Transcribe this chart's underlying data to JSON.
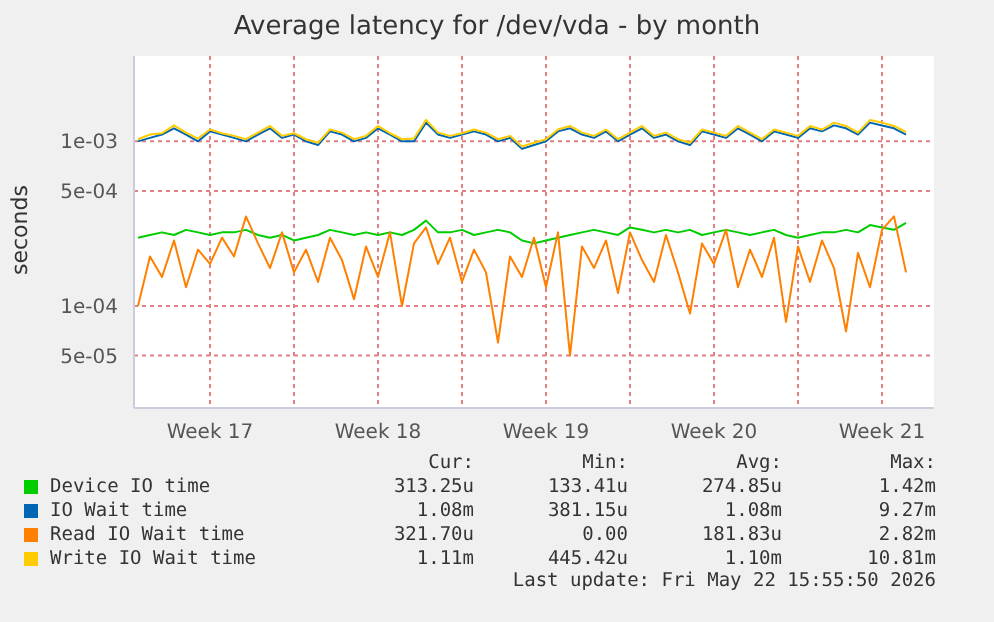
{
  "chart_data": {
    "type": "line",
    "title": "Average latency for /dev/vda - by month",
    "ylabel": "seconds",
    "log": true,
    "grid": true,
    "legend": "bottom",
    "xlim": [
      "2026-04-20T08:00",
      "2026-05-23T16:00"
    ],
    "xticks": [
      {
        "value": "2026-04-23T12:00",
        "label": "Week 17"
      },
      {
        "value": "2026-04-27",
        "label": null
      },
      {
        "value": "2026-04-30T12:00",
        "label": "Week 18"
      },
      {
        "value": "2026-05-04",
        "label": null
      },
      {
        "value": "2026-05-07T12:00",
        "label": "Week 19"
      },
      {
        "value": "2026-05-11",
        "label": null
      },
      {
        "value": "2026-05-14T12:00",
        "label": "Week 20"
      },
      {
        "value": "2026-05-18",
        "label": null
      },
      {
        "value": "2026-05-21T12:00",
        "label": "Week 21"
      }
    ],
    "ylim": [
      2.4e-05,
      0.0033
    ],
    "yticks": [
      {
        "value": 5e-05,
        "label": "5e-05"
      },
      {
        "value": 0.0001,
        "label": "1e-04"
      },
      {
        "value": 0.0005,
        "label": "5e-04"
      },
      {
        "value": 0.001,
        "label": "1e-03"
      }
    ],
    "x": [
      "2026-04-20T12:00",
      "2026-04-21T00:00",
      "2026-04-21T12:00",
      "2026-04-22T00:00",
      "2026-04-22T12:00",
      "2026-04-23T00:00",
      "2026-04-23T12:00",
      "2026-04-24T00:00",
      "2026-04-24T12:00",
      "2026-04-25T00:00",
      "2026-04-25T12:00",
      "2026-04-26T00:00",
      "2026-04-26T12:00",
      "2026-04-27T00:00",
      "2026-04-27T12:00",
      "2026-04-28T00:00",
      "2026-04-28T12:00",
      "2026-04-29T00:00",
      "2026-04-29T12:00",
      "2026-04-30T00:00",
      "2026-04-30T12:00",
      "2026-05-01T00:00",
      "2026-05-01T12:00",
      "2026-05-02T00:00",
      "2026-05-02T12:00",
      "2026-05-03T00:00",
      "2026-05-03T12:00",
      "2026-05-04T00:00",
      "2026-05-04T12:00",
      "2026-05-05T00:00",
      "2026-05-05T12:00",
      "2026-05-06T00:00",
      "2026-05-06T12:00",
      "2026-05-07T00:00",
      "2026-05-07T12:00",
      "2026-05-08T00:00",
      "2026-05-08T12:00",
      "2026-05-09T00:00",
      "2026-05-09T12:00",
      "2026-05-10T00:00",
      "2026-05-10T12:00",
      "2026-05-11T00:00",
      "2026-05-11T12:00",
      "2026-05-12T00:00",
      "2026-05-12T12:00",
      "2026-05-13T00:00",
      "2026-05-13T12:00",
      "2026-05-14T00:00",
      "2026-05-14T12:00",
      "2026-05-15T00:00",
      "2026-05-15T12:00",
      "2026-05-16T00:00",
      "2026-05-16T12:00",
      "2026-05-17T00:00",
      "2026-05-17T12:00",
      "2026-05-18T00:00",
      "2026-05-18T12:00",
      "2026-05-19T00:00",
      "2026-05-19T12:00",
      "2026-05-20T00:00",
      "2026-05-20T12:00",
      "2026-05-21T00:00",
      "2026-05-21T12:00",
      "2026-05-22T00:00",
      "2026-05-22T12:00"
    ],
    "series": [
      {
        "name": "Device IO time",
        "color": "#00cc00",
        "values": [
          0.00026,
          0.00027,
          0.00028,
          0.00027,
          0.00029,
          0.00028,
          0.00027,
          0.00028,
          0.00028,
          0.00029,
          0.00027,
          0.00026,
          0.00027,
          0.00025,
          0.00026,
          0.00027,
          0.00029,
          0.00028,
          0.00027,
          0.00028,
          0.00027,
          0.00028,
          0.00027,
          0.00029,
          0.00033,
          0.00028,
          0.00028,
          0.00029,
          0.00027,
          0.00028,
          0.00029,
          0.00028,
          0.00025,
          0.00024,
          0.00025,
          0.00026,
          0.00027,
          0.00028,
          0.00029,
          0.00028,
          0.00027,
          0.0003,
          0.00029,
          0.00028,
          0.00029,
          0.00028,
          0.00029,
          0.00027,
          0.00028,
          0.00029,
          0.00028,
          0.00027,
          0.00028,
          0.00029,
          0.00027,
          0.00026,
          0.00027,
          0.00028,
          0.00028,
          0.00029,
          0.00028,
          0.00031,
          0.0003,
          0.00029,
          0.00032
        ]
      },
      {
        "name": "IO Wait time",
        "color": "#0066b3",
        "values": [
          0.001,
          0.00105,
          0.0011,
          0.0012,
          0.0011,
          0.001,
          0.00115,
          0.0011,
          0.00105,
          0.001,
          0.0011,
          0.0012,
          0.00105,
          0.0011,
          0.001,
          0.00095,
          0.00115,
          0.0011,
          0.001,
          0.00105,
          0.0012,
          0.0011,
          0.001,
          0.001,
          0.0013,
          0.0011,
          0.00105,
          0.0011,
          0.00115,
          0.0011,
          0.001,
          0.00105,
          0.0009,
          0.00095,
          0.001,
          0.00115,
          0.0012,
          0.0011,
          0.00105,
          0.00115,
          0.001,
          0.0011,
          0.0012,
          0.00105,
          0.0011,
          0.001,
          0.00095,
          0.00115,
          0.0011,
          0.00105,
          0.0012,
          0.0011,
          0.001,
          0.00115,
          0.0011,
          0.00105,
          0.0012,
          0.00115,
          0.00125,
          0.0012,
          0.0011,
          0.0013,
          0.00125,
          0.0012,
          0.0011
        ]
      },
      {
        "name": "Read IO Wait time",
        "color": "#ff8000",
        "values": [
          0.0001,
          0.0002,
          0.00015,
          0.00025,
          0.00013,
          0.00022,
          0.00018,
          0.00026,
          0.0002,
          0.00035,
          0.00024,
          0.00017,
          0.00028,
          0.00016,
          0.00022,
          0.00014,
          0.00026,
          0.00019,
          0.00011,
          0.00023,
          0.00015,
          0.00028,
          0.0001,
          0.00024,
          0.0003,
          0.00018,
          0.00026,
          0.00014,
          0.00022,
          0.00016,
          6e-05,
          0.0002,
          0.00015,
          0.00026,
          0.00013,
          0.00028,
          5e-05,
          0.00023,
          0.00017,
          0.00025,
          0.00012,
          0.00028,
          0.00019,
          0.00014,
          0.00027,
          0.00016,
          9e-05,
          0.00024,
          0.00018,
          0.00029,
          0.00013,
          0.00022,
          0.00015,
          0.00026,
          8e-05,
          0.00023,
          0.00014,
          0.00025,
          0.00017,
          7e-05,
          0.00021,
          0.00013,
          0.00029,
          0.00035,
          0.00016
        ]
      },
      {
        "name": "Write IO Wait time",
        "color": "#ffcc00",
        "values": [
          0.00103,
          0.0011,
          0.00112,
          0.00125,
          0.00113,
          0.00104,
          0.00118,
          0.00112,
          0.00108,
          0.00103,
          0.00113,
          0.00124,
          0.00108,
          0.00112,
          0.00103,
          0.00098,
          0.00118,
          0.00113,
          0.00103,
          0.00108,
          0.00124,
          0.00112,
          0.00103,
          0.00104,
          0.00135,
          0.00113,
          0.00108,
          0.00112,
          0.00118,
          0.00113,
          0.00103,
          0.00108,
          0.00093,
          0.00098,
          0.00103,
          0.00118,
          0.00124,
          0.00113,
          0.00108,
          0.00118,
          0.00103,
          0.00113,
          0.00124,
          0.00108,
          0.00113,
          0.00103,
          0.00098,
          0.00118,
          0.00113,
          0.00108,
          0.00124,
          0.00113,
          0.00103,
          0.00118,
          0.00113,
          0.00108,
          0.00124,
          0.00118,
          0.0013,
          0.00124,
          0.00113,
          0.00135,
          0.0013,
          0.00124,
          0.00114
        ]
      }
    ],
    "annotations": [
      "Cur:",
      "Min:",
      "Avg:",
      "Max:",
      "313.25u",
      "133.41u",
      "274.85u",
      "1.42m",
      "1.08m",
      "381.15u",
      "1.08m",
      "9.27m",
      "321.70u",
      "0.00",
      "181.83u",
      "2.82m",
      "1.11m",
      "445.42u",
      "1.10m",
      "10.81m",
      "Last update: Fri May 22 15:55:50 2026"
    ]
  }
}
